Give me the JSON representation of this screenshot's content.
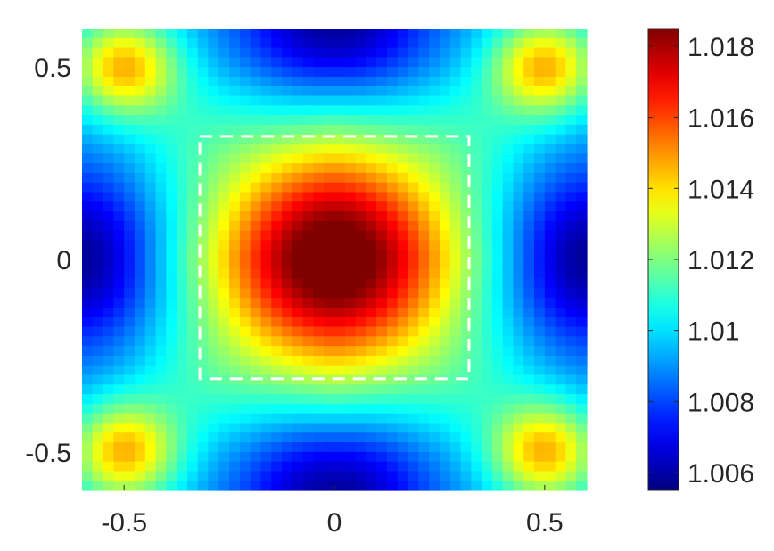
{
  "chart_data": {
    "type": "heatmap",
    "title": "",
    "xlabel": "",
    "ylabel": "",
    "xlim": [
      -0.6,
      0.6
    ],
    "ylim": [
      -0.6,
      0.6
    ],
    "grid_size": 48,
    "x_ticks": [
      {
        "value": -0.5,
        "label": "-0.5"
      },
      {
        "value": 0,
        "label": "0"
      },
      {
        "value": 0.5,
        "label": "0.5"
      }
    ],
    "y_ticks": [
      {
        "value": 0.5,
        "label": "0.5"
      },
      {
        "value": 0,
        "label": "0"
      },
      {
        "value": -0.5,
        "label": "-0.5"
      }
    ],
    "colorbar": {
      "colormap": "jet",
      "clim": [
        1.0055,
        1.0185
      ],
      "ticks": [
        {
          "value": 1.018,
          "label": "1.018"
        },
        {
          "value": 1.016,
          "label": "1.016"
        },
        {
          "value": 1.014,
          "label": "1.014"
        },
        {
          "value": 1.012,
          "label": "1.012"
        },
        {
          "value": 1.01,
          "label": "1.01"
        },
        {
          "value": 1.008,
          "label": "1.008"
        },
        {
          "value": 1.006,
          "label": "1.006"
        }
      ]
    },
    "field_model": {
      "description": "value at (x,y) sampled on grid",
      "center_peak": 1.0183,
      "edge_midpoint_min": 1.0055,
      "corner_hotspot": 1.0145
    },
    "annotation": {
      "type": "dashed-rectangle",
      "color": "#ffffff",
      "x_range": [
        -0.32,
        0.32
      ],
      "y_range": [
        -0.31,
        0.32
      ]
    }
  }
}
